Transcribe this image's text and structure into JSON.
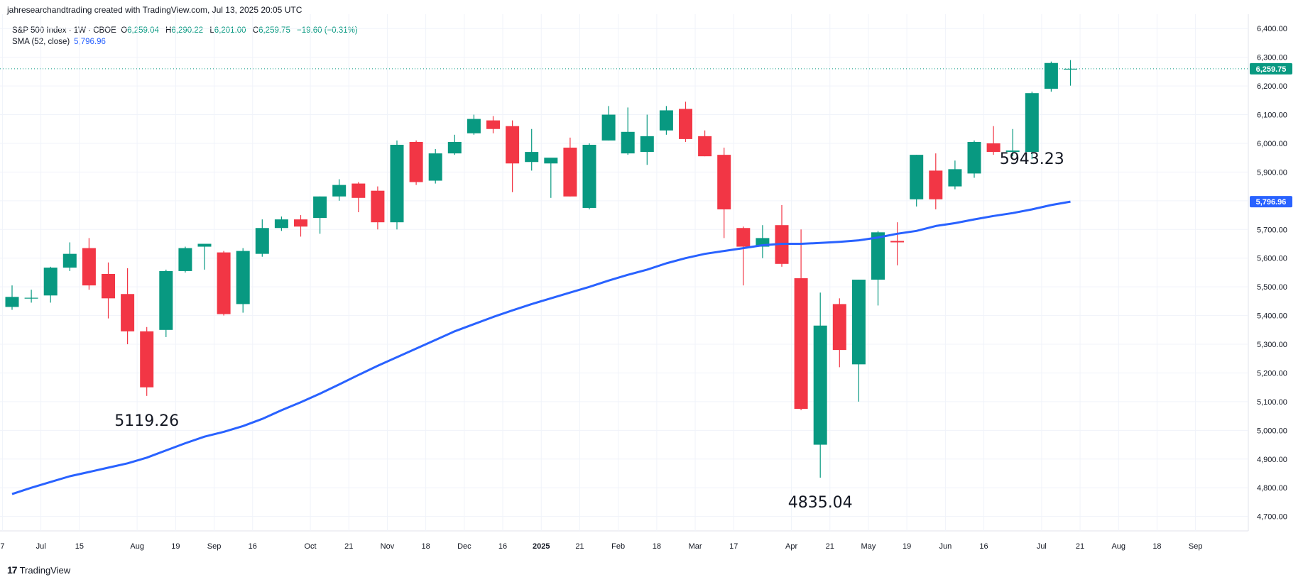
{
  "header": {
    "credit": "jahresearchandtrading created with TradingView.com, Jul 13, 2025 20:05 UTC"
  },
  "legend": {
    "symbol": "S&P 500 Index · 1W · CBOE",
    "open_label": "O",
    "open": "6,259.04",
    "high_label": "H",
    "high": "6,290.22",
    "low_label": "L",
    "low": "6,201.00",
    "close_label": "C",
    "close": "6,259.75",
    "change": "−19.60 (−0.31%)",
    "sma_label": "SMA (52, close)",
    "sma_value": "5,796.96"
  },
  "footer": {
    "brand": "TradingView",
    "mark": "17"
  },
  "colors": {
    "up": "#089981",
    "down": "#f23645",
    "sma": "#2962ff",
    "grid": "#f0f3fa",
    "text": "#131722"
  },
  "chart_data": {
    "type": "candlestick",
    "ylim": [
      4620,
      6450
    ],
    "y_ticks": [
      {
        "v": 4700,
        "label": "4,700.00"
      },
      {
        "v": 4800,
        "label": "4,800.00"
      },
      {
        "v": 4900,
        "label": "4,900.00"
      },
      {
        "v": 5000,
        "label": "5,000.00"
      },
      {
        "v": 5100,
        "label": "5,100.00"
      },
      {
        "v": 5200,
        "label": "5,200.00"
      },
      {
        "v": 5300,
        "label": "5,300.00"
      },
      {
        "v": 5400,
        "label": "5,400.00"
      },
      {
        "v": 5500,
        "label": "5,500.00"
      },
      {
        "v": 5600,
        "label": "5,600.00"
      },
      {
        "v": 5700,
        "label": "5,700.00"
      },
      {
        "v": 5800,
        "label": "5,800.00"
      },
      {
        "v": 5900,
        "label": "5,900.00"
      },
      {
        "v": 6000,
        "label": "6,000.00"
      },
      {
        "v": 6100,
        "label": "6,100.00"
      },
      {
        "v": 6200,
        "label": "6,200.00"
      },
      {
        "v": 6300,
        "label": "6,300.00"
      },
      {
        "v": 6400,
        "label": "6,400.00"
      }
    ],
    "x_ticks": [
      {
        "i": -0.5,
        "label": "7"
      },
      {
        "i": 1.5,
        "label": "Jul"
      },
      {
        "i": 3.5,
        "label": "15"
      },
      {
        "i": 6.5,
        "label": "Aug"
      },
      {
        "i": 8.5,
        "label": "19"
      },
      {
        "i": 10.5,
        "label": "Sep"
      },
      {
        "i": 12.5,
        "label": "16"
      },
      {
        "i": 15.5,
        "label": "Oct"
      },
      {
        "i": 17.5,
        "label": "21"
      },
      {
        "i": 19.5,
        "label": "Nov"
      },
      {
        "i": 21.5,
        "label": "18"
      },
      {
        "i": 23.5,
        "label": "Dec"
      },
      {
        "i": 25.5,
        "label": "16"
      },
      {
        "i": 27.5,
        "label": "2025",
        "bold": true
      },
      {
        "i": 29.5,
        "label": "21"
      },
      {
        "i": 31.5,
        "label": "Feb"
      },
      {
        "i": 33.5,
        "label": "18"
      },
      {
        "i": 35.5,
        "label": "Mar"
      },
      {
        "i": 37.5,
        "label": "17"
      },
      {
        "i": 40.5,
        "label": "Apr"
      },
      {
        "i": 42.5,
        "label": "21"
      },
      {
        "i": 44.5,
        "label": "May"
      },
      {
        "i": 46.5,
        "label": "19"
      },
      {
        "i": 48.5,
        "label": "Jun"
      },
      {
        "i": 50.5,
        "label": "16"
      },
      {
        "i": 53.5,
        "label": "Jul"
      },
      {
        "i": 55.5,
        "label": "21"
      },
      {
        "i": 57.5,
        "label": "Aug"
      },
      {
        "i": 59.5,
        "label": "18"
      },
      {
        "i": 61.5,
        "label": "Sep"
      }
    ],
    "candles": [
      {
        "o": 5430,
        "h": 5505,
        "l": 5420,
        "c": 5465
      },
      {
        "o": 5460,
        "h": 5490,
        "l": 5445,
        "c": 5462
      },
      {
        "o": 5470,
        "h": 5570,
        "l": 5445,
        "c": 5567
      },
      {
        "o": 5567,
        "h": 5655,
        "l": 5555,
        "c": 5615
      },
      {
        "o": 5635,
        "h": 5670,
        "l": 5490,
        "c": 5505
      },
      {
        "o": 5545,
        "h": 5585,
        "l": 5390,
        "c": 5460
      },
      {
        "o": 5475,
        "h": 5565,
        "l": 5300,
        "c": 5345
      },
      {
        "o": 5345,
        "h": 5360,
        "l": 5120,
        "c": 5150
      },
      {
        "o": 5350,
        "h": 5560,
        "l": 5325,
        "c": 5555
      },
      {
        "o": 5555,
        "h": 5640,
        "l": 5550,
        "c": 5635
      },
      {
        "o": 5640,
        "h": 5650,
        "l": 5560,
        "c": 5650
      },
      {
        "o": 5620,
        "h": 5625,
        "l": 5400,
        "c": 5405
      },
      {
        "o": 5440,
        "h": 5635,
        "l": 5410,
        "c": 5625
      },
      {
        "o": 5615,
        "h": 5735,
        "l": 5605,
        "c": 5705
      },
      {
        "o": 5705,
        "h": 5745,
        "l": 5695,
        "c": 5735
      },
      {
        "o": 5735,
        "h": 5750,
        "l": 5675,
        "c": 5710
      },
      {
        "o": 5740,
        "h": 5815,
        "l": 5685,
        "c": 5815
      },
      {
        "o": 5815,
        "h": 5875,
        "l": 5800,
        "c": 5855
      },
      {
        "o": 5860,
        "h": 5865,
        "l": 5760,
        "c": 5810
      },
      {
        "o": 5835,
        "h": 5850,
        "l": 5700,
        "c": 5725
      },
      {
        "o": 5725,
        "h": 6010,
        "l": 5700,
        "c": 5995
      },
      {
        "o": 6005,
        "h": 6010,
        "l": 5855,
        "c": 5865
      },
      {
        "o": 5870,
        "h": 5980,
        "l": 5860,
        "c": 5965
      },
      {
        "o": 5965,
        "h": 6030,
        "l": 5960,
        "c": 6005
      },
      {
        "o": 6035,
        "h": 6100,
        "l": 6030,
        "c": 6085
      },
      {
        "o": 6080,
        "h": 6095,
        "l": 6035,
        "c": 6050
      },
      {
        "o": 6060,
        "h": 6080,
        "l": 5830,
        "c": 5930
      },
      {
        "o": 5935,
        "h": 6050,
        "l": 5905,
        "c": 5970
      },
      {
        "o": 5930,
        "h": 5945,
        "l": 5810,
        "c": 5950
      },
      {
        "o": 5985,
        "h": 6020,
        "l": 5815,
        "c": 5815
      },
      {
        "o": 5775,
        "h": 6000,
        "l": 5770,
        "c": 5995
      },
      {
        "o": 6010,
        "h": 6130,
        "l": 6010,
        "c": 6100
      },
      {
        "o": 5965,
        "h": 6125,
        "l": 5960,
        "c": 6040
      },
      {
        "o": 5970,
        "h": 6100,
        "l": 5925,
        "c": 6025
      },
      {
        "o": 6045,
        "h": 6130,
        "l": 6030,
        "c": 6115
      },
      {
        "o": 6120,
        "h": 6145,
        "l": 6005,
        "c": 6015
      },
      {
        "o": 6025,
        "h": 6045,
        "l": 5955,
        "c": 5955
      },
      {
        "o": 5960,
        "h": 5985,
        "l": 5670,
        "c": 5770
      },
      {
        "o": 5705,
        "h": 5710,
        "l": 5505,
        "c": 5640
      },
      {
        "o": 5640,
        "h": 5715,
        "l": 5600,
        "c": 5670
      },
      {
        "o": 5715,
        "h": 5785,
        "l": 5570,
        "c": 5580
      },
      {
        "o": 5530,
        "h": 5700,
        "l": 5070,
        "c": 5075
      },
      {
        "o": 4950,
        "h": 5480,
        "l": 4835,
        "c": 5365
      },
      {
        "o": 5440,
        "h": 5460,
        "l": 5220,
        "c": 5280
      },
      {
        "o": 5230,
        "h": 5525,
        "l": 5100,
        "c": 5525
      },
      {
        "o": 5525,
        "h": 5695,
        "l": 5435,
        "c": 5690
      },
      {
        "o": 5660,
        "h": 5725,
        "l": 5575,
        "c": 5655
      },
      {
        "o": 5805,
        "h": 5960,
        "l": 5780,
        "c": 5960
      },
      {
        "o": 5905,
        "h": 5965,
        "l": 5770,
        "c": 5805
      },
      {
        "o": 5850,
        "h": 5940,
        "l": 5840,
        "c": 5910
      },
      {
        "o": 5895,
        "h": 6010,
        "l": 5880,
        "c": 6005
      },
      {
        "o": 6000,
        "h": 6060,
        "l": 5960,
        "c": 5970
      },
      {
        "o": 5970,
        "h": 6050,
        "l": 5955,
        "c": 5975
      },
      {
        "o": 5970,
        "h": 6180,
        "l": 5945,
        "c": 6175
      },
      {
        "o": 6190,
        "h": 6285,
        "l": 6180,
        "c": 6280
      },
      {
        "o": 6259,
        "h": 6290,
        "l": 6201,
        "c": 6260
      }
    ],
    "sma": {
      "name": "SMA (52, close)",
      "points": [
        [
          0,
          4778
        ],
        [
          1,
          4800
        ],
        [
          2,
          4820
        ],
        [
          3,
          4840
        ],
        [
          4,
          4855
        ],
        [
          5,
          4870
        ],
        [
          6,
          4885
        ],
        [
          7,
          4905
        ],
        [
          8,
          4930
        ],
        [
          9,
          4955
        ],
        [
          10,
          4978
        ],
        [
          11,
          4995
        ],
        [
          12,
          5015
        ],
        [
          13,
          5040
        ],
        [
          14,
          5070
        ],
        [
          15,
          5098
        ],
        [
          16,
          5128
        ],
        [
          17,
          5160
        ],
        [
          18,
          5193
        ],
        [
          19,
          5225
        ],
        [
          20,
          5255
        ],
        [
          21,
          5285
        ],
        [
          22,
          5315
        ],
        [
          23,
          5345
        ],
        [
          24,
          5370
        ],
        [
          25,
          5395
        ],
        [
          26,
          5418
        ],
        [
          27,
          5440
        ],
        [
          28,
          5460
        ],
        [
          29,
          5480
        ],
        [
          30,
          5500
        ],
        [
          31,
          5522
        ],
        [
          32,
          5542
        ],
        [
          33,
          5560
        ],
        [
          34,
          5582
        ],
        [
          35,
          5600
        ],
        [
          36,
          5615
        ],
        [
          37,
          5625
        ],
        [
          38,
          5635
        ],
        [
          39,
          5645
        ],
        [
          40,
          5650
        ],
        [
          41,
          5650
        ],
        [
          42,
          5653
        ],
        [
          43,
          5657
        ],
        [
          44,
          5662
        ],
        [
          45,
          5672
        ],
        [
          46,
          5685
        ],
        [
          47,
          5695
        ],
        [
          48,
          5712
        ],
        [
          49,
          5722
        ],
        [
          50,
          5735
        ],
        [
          51,
          5747
        ],
        [
          52,
          5757
        ],
        [
          53,
          5770
        ],
        [
          54,
          5785
        ],
        [
          55,
          5797
        ]
      ]
    },
    "last_price": {
      "v": 6259.75,
      "label": "6,259.75"
    },
    "sma_last": {
      "v": 5796.96,
      "label": "5,796.96"
    },
    "annotations": [
      {
        "text": "5119.26",
        "i": 7,
        "v": 5119.26
      },
      {
        "text": "4835.04",
        "i": 42,
        "v": 4835.04
      },
      {
        "text": "5943.23",
        "i": 53,
        "v": 5943.23
      }
    ]
  }
}
